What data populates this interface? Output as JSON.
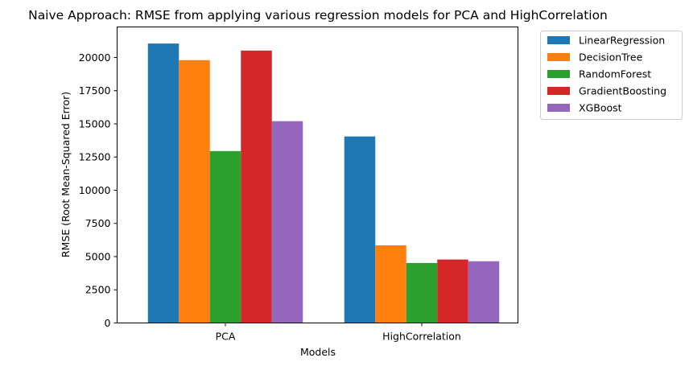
{
  "chart_data": {
    "type": "bar",
    "title": "Naive Approach: RMSE from applying various regression models for PCA and HighCorrelation",
    "xlabel": "Models",
    "ylabel": "RMSE (Root Mean-Squared Error)",
    "categories": [
      "PCA",
      "HighCorrelation"
    ],
    "ylim": [
      0,
      22300
    ],
    "yticks": [
      "0",
      "2500",
      "5000",
      "7500",
      "10000",
      "12500",
      "15000",
      "17500",
      "20000"
    ],
    "legend_position": "outside-top-right",
    "grid": false,
    "series": [
      {
        "name": "LinearRegression",
        "color": "#1f77b4",
        "values": [
          21050,
          14050
        ]
      },
      {
        "name": "DecisionTree",
        "color": "#ff7f0e",
        "values": [
          19800,
          5850
        ]
      },
      {
        "name": "RandomForest",
        "color": "#2ca02c",
        "values": [
          12950,
          4520
        ]
      },
      {
        "name": "GradientBoosting",
        "color": "#d62728",
        "values": [
          20520,
          4780
        ]
      },
      {
        "name": "XGBoost",
        "color": "#9467bd",
        "values": [
          15200,
          4650
        ]
      }
    ]
  }
}
